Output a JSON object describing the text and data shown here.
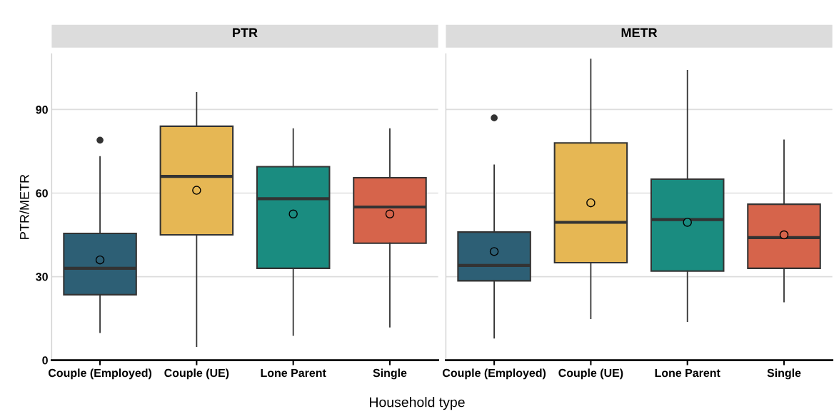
{
  "chart_data": [
    {
      "type": "box",
      "title": "PTR",
      "xlabel": "Household type",
      "ylabel": "PTR/METR",
      "categories": [
        "Couple (Employed)",
        "Couple (UE)",
        "Lone Parent",
        "Single"
      ],
      "colors": [
        "#2d5f75",
        "#e6b754",
        "#1a8c80",
        "#d6644b"
      ],
      "ylim": [
        0,
        110
      ],
      "yticks": [
        0,
        30,
        60,
        90
      ],
      "grid": "y",
      "boxes": [
        {
          "low": 10,
          "q1": 23.5,
          "median": 33,
          "q3": 45.5,
          "high": 73,
          "mean": 36,
          "outliers": [
            79
          ]
        },
        {
          "low": 5,
          "q1": 45,
          "median": 66,
          "q3": 84,
          "high": 96,
          "mean": 61
        },
        {
          "low": 9,
          "q1": 33,
          "median": 58,
          "q3": 69.5,
          "high": 83,
          "mean": 52.5
        },
        {
          "low": 12,
          "q1": 42,
          "median": 55,
          "q3": 65.5,
          "high": 83,
          "mean": 52.5
        }
      ]
    },
    {
      "type": "box",
      "title": "METR",
      "categories": [
        "Couple (Employed)",
        "Couple (UE)",
        "Lone Parent",
        "Single"
      ],
      "colors": [
        "#2d5f75",
        "#e6b754",
        "#1a8c80",
        "#d6644b"
      ],
      "ylim": [
        0,
        110
      ],
      "yticks": [
        0,
        30,
        60,
        90
      ],
      "grid": "y",
      "tick_labels": "x",
      "boxes": [
        {
          "low": 8,
          "q1": 28.5,
          "median": 34,
          "q3": 46,
          "high": 70,
          "mean": 39,
          "outliers": [
            87
          ]
        },
        {
          "low": 15,
          "q1": 35,
          "median": 49.5,
          "q3": 78,
          "high": 108,
          "mean": 56.5
        },
        {
          "low": 14,
          "q1": 32,
          "median": 50.5,
          "q3": 65,
          "high": 104,
          "mean": 49.5
        },
        {
          "low": 21,
          "q1": 33,
          "median": 44,
          "q3": 56,
          "high": 79,
          "mean": 45
        }
      ]
    }
  ]
}
